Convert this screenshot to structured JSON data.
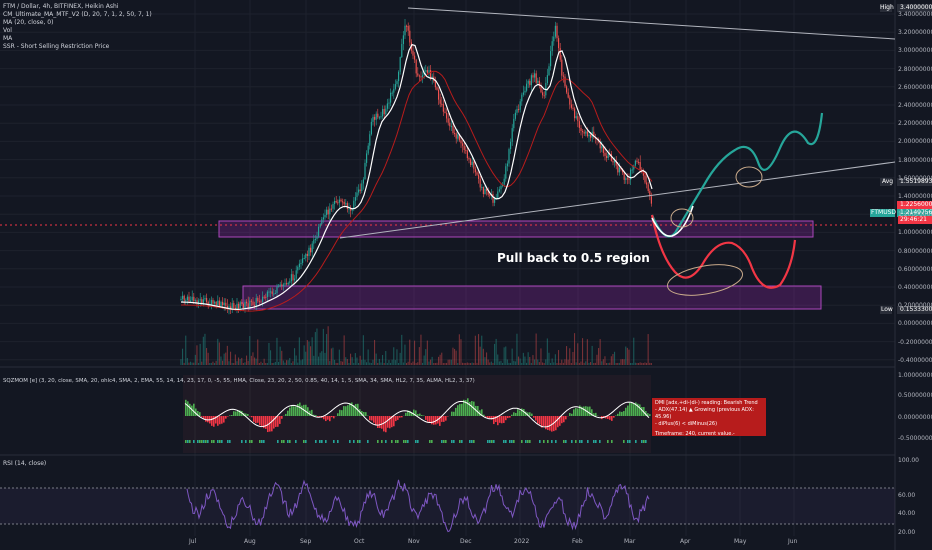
{
  "symbol_title": "FTM / Dollar, 4h, BITFINEX, Heikin Ashi",
  "indicators": [
    "CM_Ultimate_MA_MTF_V2 (D, 20, 7, 1, 2, 50, 7, 1)",
    "MA (20, close, 0)",
    "Vol",
    "MA",
    "SSR - Short Selling Restriction Price"
  ],
  "sqz_legend": "SQZMOM [e] (3, 20, close, SMA, 20, ohlc4, SMA, 2, EMA, 55, 14, 14, 23, 17, 0, -5, 55, HMA, Close, 23, 20, 2, 50, 0.85, 40, 14, 1, 5, SMA, 34, SMA, HL2, 7, 35, ALMA, HL2, 3, 37)",
  "rsi_legend": "RSI (14, close)",
  "annotation": "Pull back to 0.5 region",
  "dmi_box": {
    "line1": "DMI [adx,+di-(di-) reading: Bearish Trend",
    "line2": "- ADX(47.14) ▲ Growing (previous ADX: 45.96)",
    "line3": "- diPlus(6) < diMinus(26)",
    "line4": "Timeframe: 240, current value.-"
  },
  "price_axis": [
    "3.40000000",
    "3.20000000",
    "3.00000000",
    "2.80000000",
    "2.60000000",
    "2.40000000",
    "2.20000000",
    "2.00000000",
    "1.80000000",
    "1.60000000",
    "1.40000000",
    "1.20000000",
    "1.00000000",
    "0.80000000",
    "0.60000000",
    "0.40000000",
    "0.20000000",
    "0.00000000",
    "-0.20000000",
    "-0.40000000"
  ],
  "price_tags": {
    "high_label": "High",
    "high_value": "3.40000000",
    "avg_label": "Avg",
    "avg_value": "1.55198934",
    "last_value": "1.22560000",
    "countdown": "29:46:21",
    "ftm_label": "FTMUSD",
    "ftm_value": "1.21497560",
    "low_label": "Low",
    "low_value": "0.15333000"
  },
  "sqz_axis": [
    "1.00000000",
    "0.50000000",
    "0.00000000",
    "-0.50000000"
  ],
  "rsi_axis": [
    "100.00",
    "60.00",
    "40.00",
    "20.00"
  ],
  "x_axis": [
    "Jul",
    "Aug",
    "Sep",
    "Oct",
    "Nov",
    "Dec",
    "2022",
    "Feb",
    "Mar",
    "Apr",
    "May",
    "Jun"
  ],
  "colors": {
    "bg": "#131722",
    "up": "#26a69a",
    "down": "#ef5350",
    "zone": "#9c27b0",
    "rsi": "#7e57c2",
    "green_path": "#26a69a",
    "red_path": "#f23645"
  }
}
